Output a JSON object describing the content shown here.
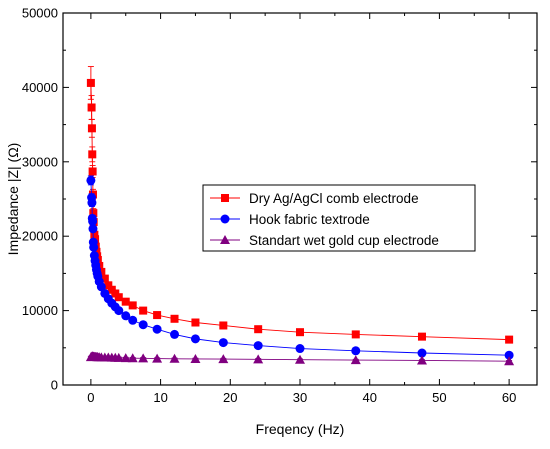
{
  "chart_data": {
    "type": "scatter",
    "xlabel": "Freqency (Hz)",
    "ylabel": "Impedance |Z| (Ω)",
    "xlim": [
      -4,
      64
    ],
    "ylim": [
      0,
      50000
    ],
    "x_ticks": [
      0,
      10,
      20,
      30,
      40,
      50,
      60
    ],
    "y_ticks": [
      0,
      10000,
      20000,
      30000,
      40000,
      50000
    ],
    "x_tick_labels": [
      "0",
      "10",
      "20",
      "30",
      "40",
      "50",
      "60"
    ],
    "y_tick_labels": [
      "0",
      "10000",
      "20000",
      "30000",
      "40000",
      "50000"
    ],
    "legend_position": "center-right",
    "series": [
      {
        "name": "Dry Ag/AgCl comb electrode",
        "color": "#ff0000",
        "marker": "square",
        "x": [
          0.0,
          0.1,
          0.15,
          0.2,
          0.25,
          0.3,
          0.35,
          0.4,
          0.5,
          0.6,
          0.7,
          0.8,
          0.9,
          1.0,
          1.2,
          1.5,
          2.0,
          2.5,
          3.0,
          3.5,
          4.0,
          5.0,
          6.0,
          7.5,
          9.5,
          12.0,
          15.0,
          19.0,
          24.0,
          30.0,
          38.0,
          47.5,
          60.0
        ],
        "y": [
          40600,
          37300,
          34500,
          31000,
          28700,
          25600,
          23100,
          21900,
          20200,
          19600,
          18600,
          17900,
          17300,
          16800,
          16000,
          15200,
          14300,
          13400,
          12800,
          12300,
          11800,
          11200,
          10700,
          10000,
          9400,
          8900,
          8400,
          8000,
          7500,
          7100,
          6800,
          6500,
          6100
        ],
        "error": [
          2200,
          1600,
          1200,
          1000,
          800,
          700,
          600,
          500,
          400,
          350,
          300,
          250,
          250,
          200,
          200,
          150,
          150,
          150,
          120,
          120,
          100,
          100,
          100,
          100,
          80,
          80,
          80,
          70,
          70,
          60,
          60,
          60,
          60
        ]
      },
      {
        "name": "Hook fabric textrode",
        "color": "#0000ff",
        "marker": "circle",
        "x": [
          0.0,
          0.1,
          0.15,
          0.2,
          0.25,
          0.3,
          0.35,
          0.4,
          0.5,
          0.6,
          0.7,
          0.8,
          0.9,
          1.0,
          1.2,
          1.5,
          2.0,
          2.5,
          3.0,
          3.5,
          4.0,
          5.0,
          6.0,
          7.5,
          9.5,
          12.0,
          15.0,
          19.0,
          24.0,
          30.0,
          38.0,
          47.5,
          60.0
        ],
        "y": [
          27500,
          25200,
          24500,
          22400,
          22000,
          21000,
          19200,
          18500,
          17400,
          16700,
          16100,
          15500,
          15000,
          14600,
          13900,
          13200,
          12300,
          11600,
          11000,
          10500,
          10000,
          9300,
          8700,
          8100,
          7500,
          6800,
          6200,
          5700,
          5300,
          4900,
          4600,
          4300,
          4000
        ],
        "error": [
          600,
          500,
          500,
          400,
          400,
          400,
          300,
          300,
          300,
          250,
          250,
          200,
          200,
          200,
          200,
          150,
          150,
          150,
          120,
          120,
          100,
          100,
          100,
          100,
          80,
          80,
          80,
          70,
          70,
          60,
          60,
          60,
          60
        ]
      },
      {
        "name": "Standart wet gold cup electrode",
        "color": "#800080",
        "marker": "triangle",
        "x": [
          0.0,
          0.1,
          0.15,
          0.2,
          0.25,
          0.3,
          0.35,
          0.4,
          0.5,
          0.6,
          0.7,
          0.8,
          0.9,
          1.0,
          1.2,
          1.5,
          2.0,
          2.5,
          3.0,
          3.5,
          4.0,
          5.0,
          6.0,
          7.5,
          9.5,
          12.0,
          15.0,
          19.0,
          24.0,
          30.0,
          38.0,
          47.5,
          60.0
        ],
        "y": [
          3750,
          3800,
          3820,
          3840,
          3830,
          3820,
          3810,
          3800,
          3790,
          3780,
          3770,
          3760,
          3750,
          3740,
          3730,
          3720,
          3700,
          3690,
          3680,
          3660,
          3650,
          3620,
          3600,
          3580,
          3550,
          3520,
          3500,
          3480,
          3450,
          3400,
          3350,
          3300,
          3200
        ],
        "error": [
          100,
          100,
          100,
          100,
          100,
          100,
          100,
          100,
          100,
          100,
          100,
          100,
          100,
          100,
          100,
          100,
          100,
          100,
          100,
          100,
          100,
          100,
          100,
          100,
          100,
          100,
          100,
          100,
          100,
          100,
          100,
          100,
          100
        ]
      }
    ]
  }
}
